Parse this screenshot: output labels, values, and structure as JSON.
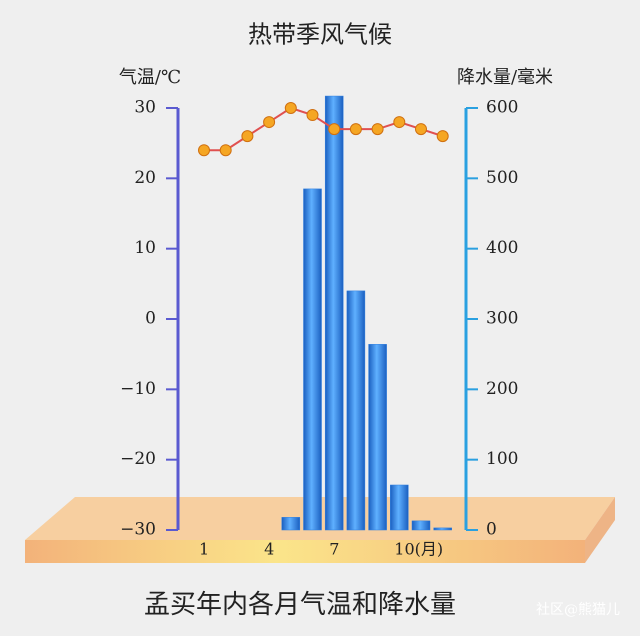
{
  "chart_data": {
    "type": "combo",
    "title": "热带季风气候",
    "caption": "孟买年内各月气温和降水量",
    "watermark": "社区@熊猫儿",
    "ylabel": "气温/℃",
    "y2label": "降水量/毫米",
    "categories": [
      "1",
      null,
      null,
      "4",
      null,
      null,
      "7",
      null,
      null,
      "10(月)",
      null,
      null
    ],
    "ylim": [
      -30,
      30
    ],
    "yticks": [
      30,
      20,
      10,
      0,
      {
        "value": -10,
        "label": "−10"
      },
      {
        "value": -20,
        "label": "−20"
      },
      {
        "value": -30,
        "label": "−30"
      }
    ],
    "y2lim": [
      0,
      600
    ],
    "y2ticks": [
      600,
      500,
      400,
      300,
      200,
      100,
      0
    ],
    "series": [
      {
        "name": "降水量",
        "type": "bar",
        "axis": "y2",
        "color": "#2f7fe0",
        "values": [
          0,
          0,
          0,
          0,
          18,
          485,
          617,
          340,
          264,
          64,
          13,
          3
        ]
      },
      {
        "name": "气温",
        "type": "line",
        "color": "#f5a623",
        "values": [
          24,
          24,
          26,
          28,
          30,
          29,
          27,
          27,
          27,
          28,
          27,
          26
        ]
      }
    ]
  }
}
